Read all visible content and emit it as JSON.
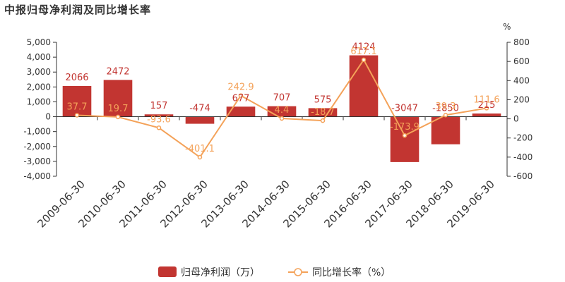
{
  "chart_data": {
    "type": "bar",
    "title": "中报归母净利润及同比增长率",
    "categories": [
      "2009-06-30",
      "2010-06-30",
      "2011-06-30",
      "2012-06-30",
      "2013-06-30",
      "2014-06-30",
      "2015-06-30",
      "2016-06-30",
      "2017-06-30",
      "2018-06-30",
      "2019-06-30"
    ],
    "series": [
      {
        "name": "归母净利润（万）",
        "type": "bar",
        "axis": "left",
        "color": "#c23531",
        "values": [
          2066,
          2472,
          157,
          -474,
          677,
          707,
          575,
          4124,
          -3047,
          -1850,
          215
        ],
        "labels": [
          "2066",
          "2472",
          "157",
          "-474",
          "677",
          "707",
          "575",
          "4124",
          "-3047",
          "-1850",
          "215"
        ]
      },
      {
        "name": "同比增长率（%）",
        "type": "line",
        "axis": "right",
        "color": "#f4a259",
        "values": [
          37.7,
          19.7,
          -93.6,
          -401.1,
          242.9,
          4.4,
          -18.7,
          617.1,
          -173.9,
          39.3,
          111.6
        ],
        "labels": [
          "37.7",
          "19.7",
          "-93.6",
          "-401.1",
          "242.9",
          "4.4",
          "-18.7",
          "617.1",
          "-173.9",
          "39.3",
          "111.6"
        ]
      }
    ],
    "y_left": {
      "ylim": [
        -4000,
        5000
      ],
      "ticks": [
        5000,
        4000,
        3000,
        2000,
        1000,
        0,
        -1000,
        -2000,
        -3000,
        -4000
      ],
      "tick_labels": [
        "5,000",
        "4,000",
        "3,000",
        "2,000",
        "1,000",
        "0",
        "-1,000",
        "-2,000",
        "-3,000",
        "-4,000"
      ]
    },
    "y_right": {
      "unit": "%",
      "ylim": [
        -600,
        800
      ],
      "ticks": [
        800,
        600,
        400,
        200,
        0,
        -200,
        -400,
        -600
      ],
      "tick_labels": [
        "800",
        "600",
        "400",
        "200",
        "0",
        "-200",
        "-400",
        "-600"
      ]
    },
    "grid": false,
    "legend_position": "bottom-center",
    "legend": [
      "归母净利润（万）",
      "同比增长率（%）"
    ]
  }
}
